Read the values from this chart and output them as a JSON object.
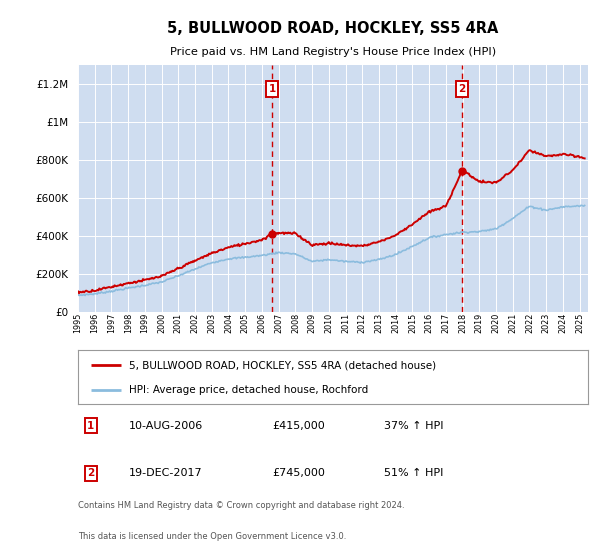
{
  "title": "5, BULLWOOD ROAD, HOCKLEY, SS5 4RA",
  "subtitle": "Price paid vs. HM Land Registry's House Price Index (HPI)",
  "bg_color": "#cfddf0",
  "grid_color": "#ffffff",
  "hpi_line_color": "#8bbcde",
  "price_line_color": "#cc0000",
  "dashed_line_color": "#cc0000",
  "ylim": [
    0,
    1300000
  ],
  "yticks": [
    0,
    200000,
    400000,
    600000,
    800000,
    1000000,
    1200000
  ],
  "ytick_labels": [
    "£0",
    "£200K",
    "£400K",
    "£600K",
    "£800K",
    "£1M",
    "£1.2M"
  ],
  "sale1_year": 2006.617,
  "sale1_price": 415000,
  "sale1_date": "10-AUG-2006",
  "sale1_amount": "£415,000",
  "sale1_pct": "37% ↑ HPI",
  "sale2_year": 2017.962,
  "sale2_price": 745000,
  "sale2_date": "19-DEC-2017",
  "sale2_amount": "£745,000",
  "sale2_pct": "51% ↑ HPI",
  "legend_line1": "5, BULLWOOD ROAD, HOCKLEY, SS5 4RA (detached house)",
  "legend_line2": "HPI: Average price, detached house, Rochford",
  "footer1": "Contains HM Land Registry data © Crown copyright and database right 2024.",
  "footer2": "This data is licensed under the Open Government Licence v3.0."
}
